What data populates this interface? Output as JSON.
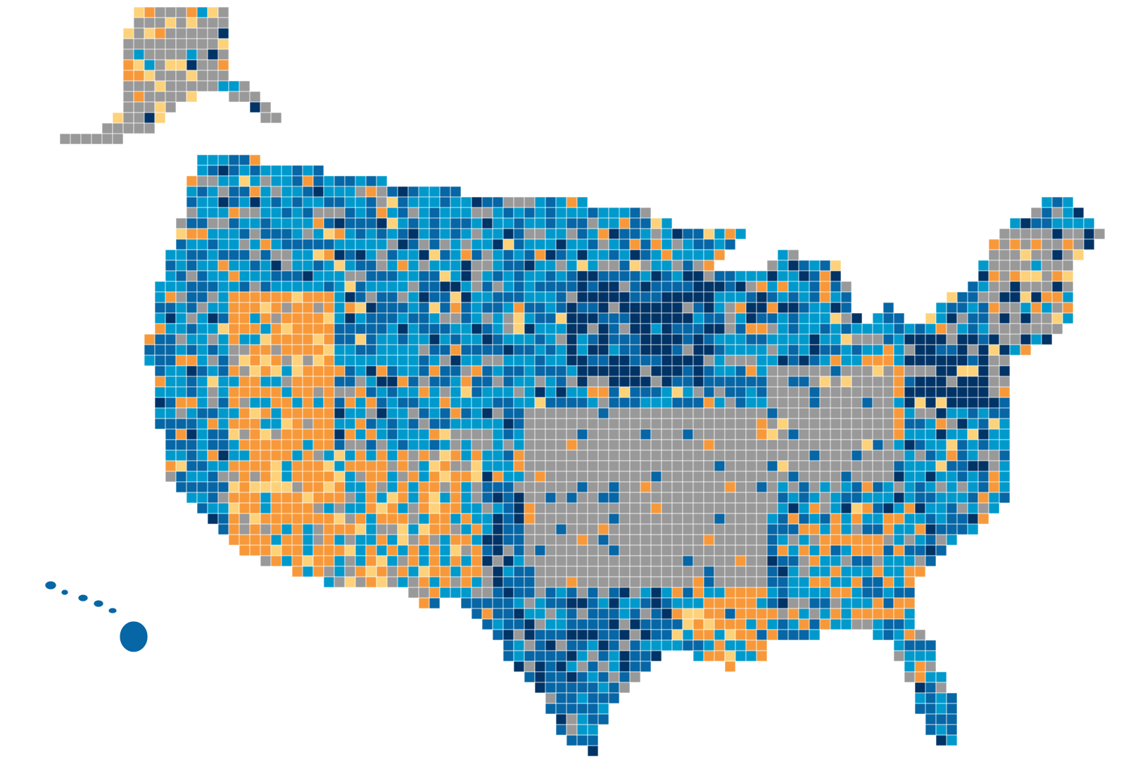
{
  "map": {
    "type": "choropleth",
    "colors": [
      "#999999",
      "#f7993a",
      "#fdd27a",
      "#0099cc",
      "#0766a5",
      "#003366"
    ]
  }
}
